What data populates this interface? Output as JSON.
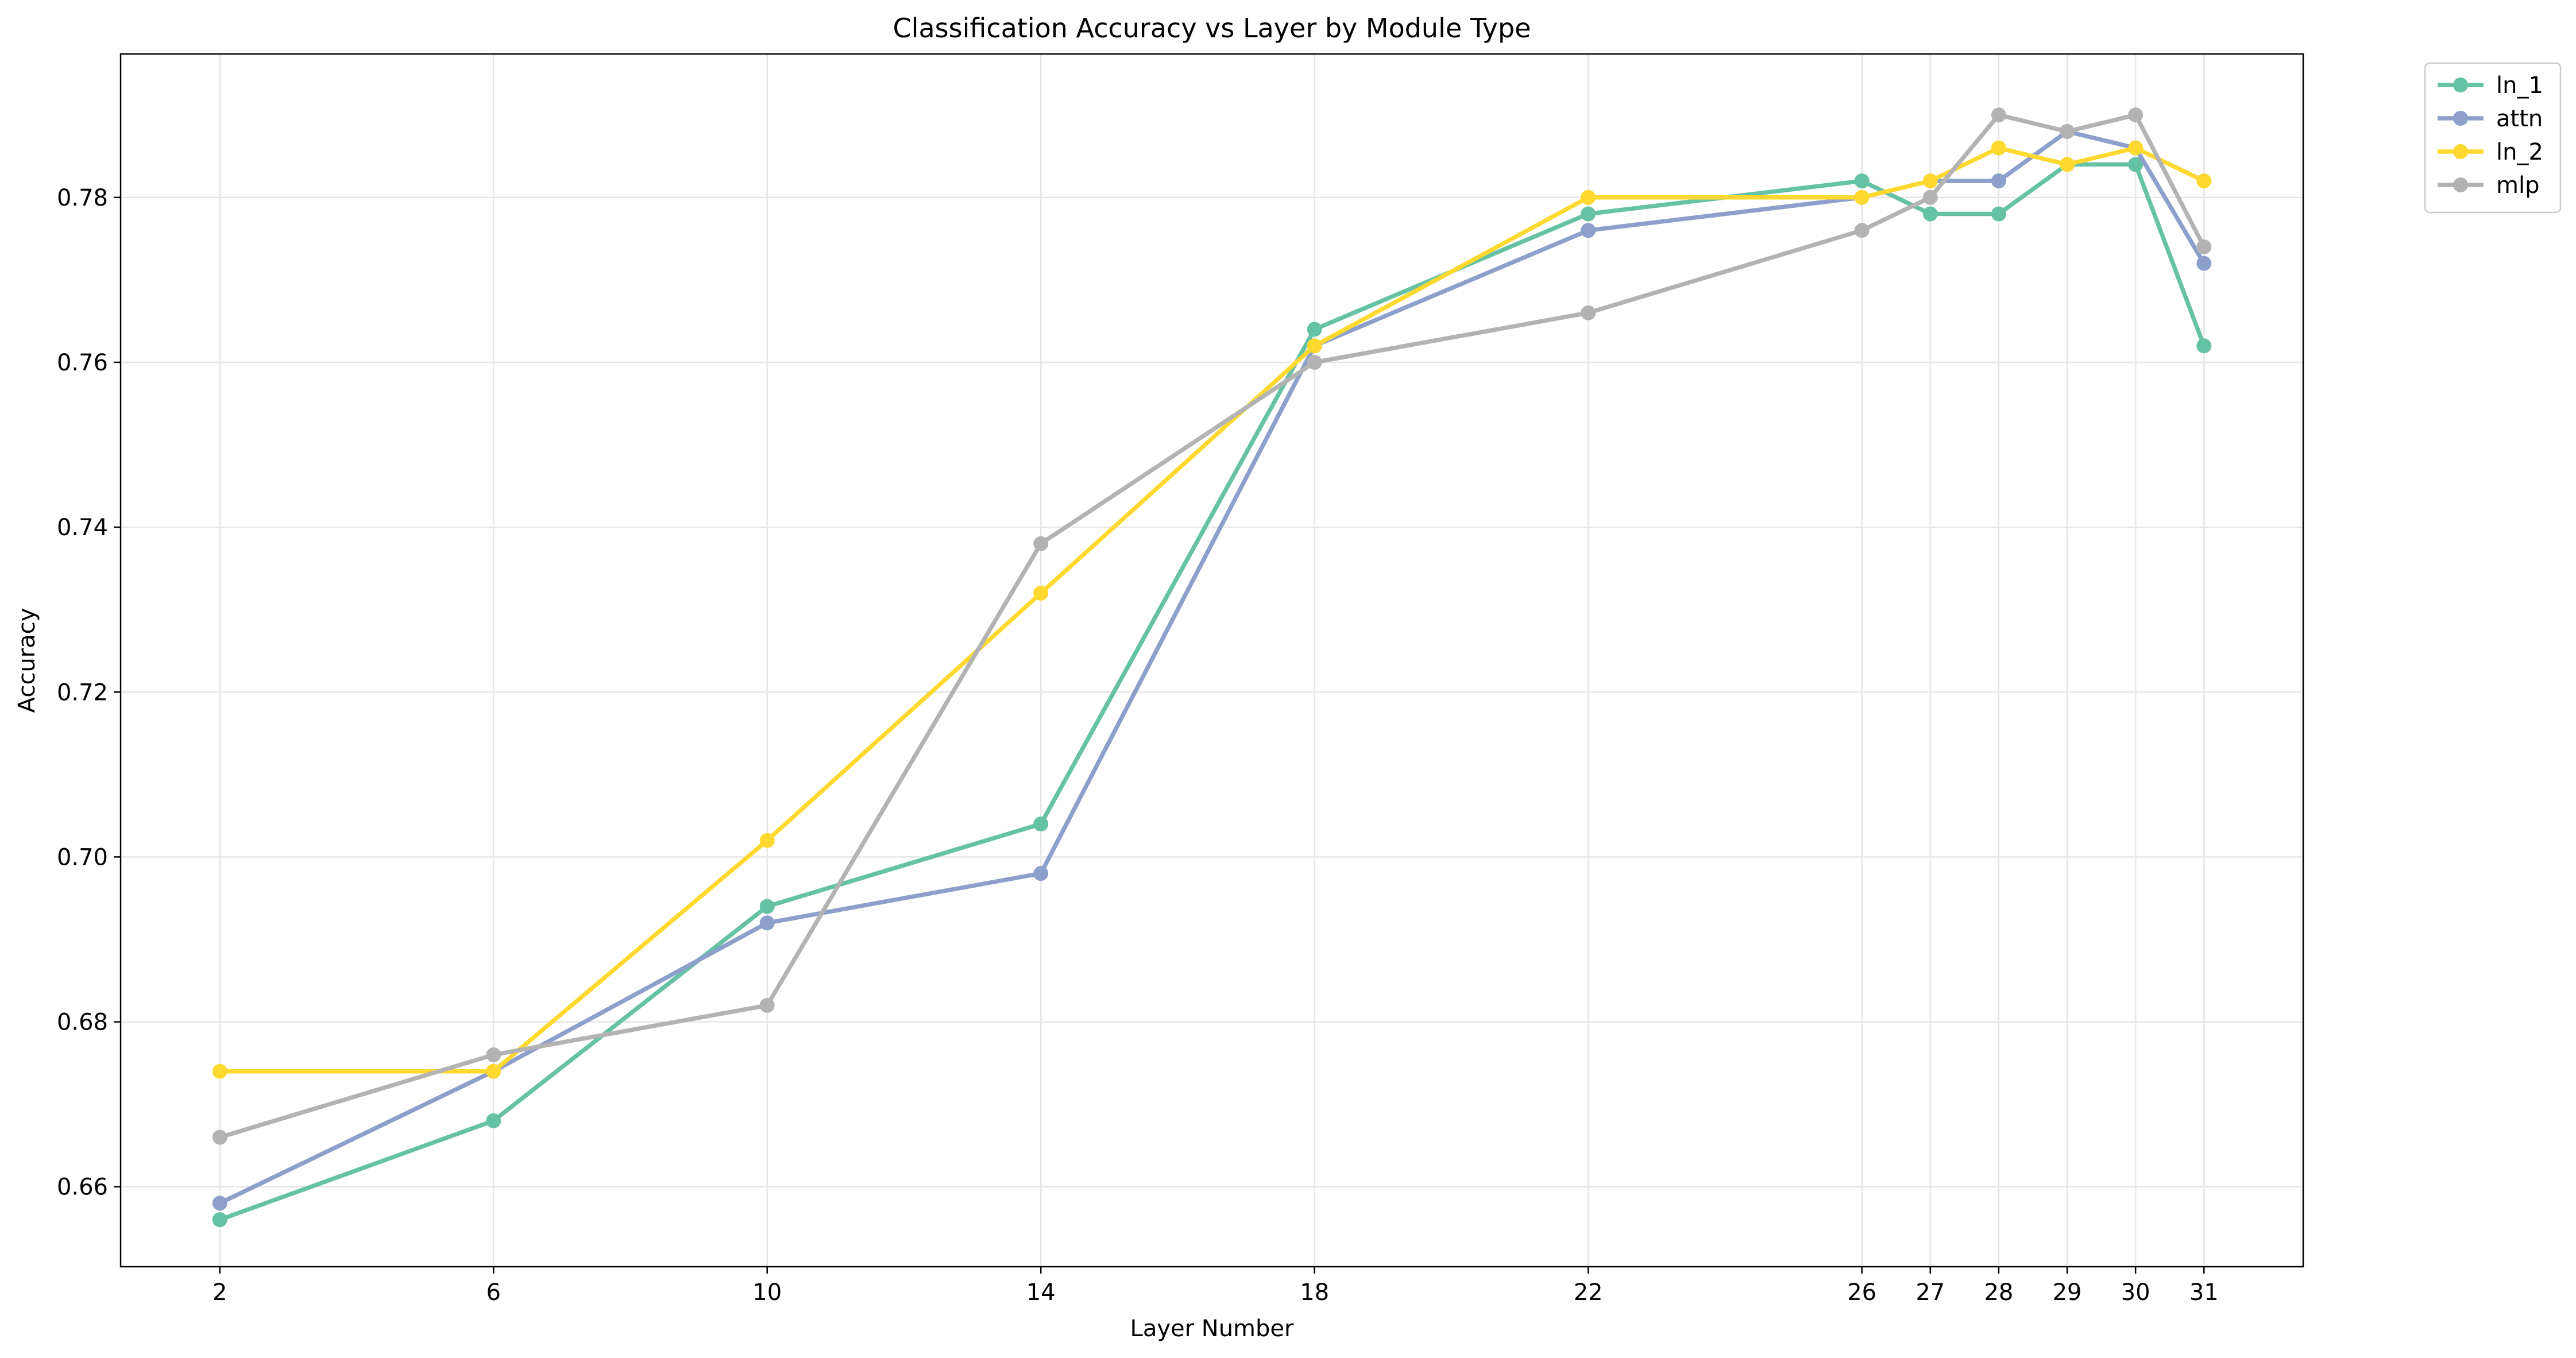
{
  "chart_data": {
    "type": "line",
    "title": "Classification Accuracy vs Layer by Module Type",
    "xlabel": "Layer Number",
    "ylabel": "Accuracy",
    "x": [
      2,
      6,
      10,
      14,
      18,
      22,
      26,
      27,
      28,
      29,
      30,
      31
    ],
    "x_ticks": [
      "2",
      "6",
      "10",
      "14",
      "18",
      "22",
      "26",
      "27",
      "28",
      "29",
      "30",
      "31"
    ],
    "xlim": [
      0.55,
      32.45
    ],
    "ylim": [
      0.6503,
      0.7974
    ],
    "y_ticks": [
      0.66,
      0.68,
      0.7,
      0.72,
      0.74,
      0.76,
      0.78
    ],
    "y_tick_labels": [
      "0.66",
      "0.68",
      "0.70",
      "0.72",
      "0.74",
      "0.76",
      "0.78"
    ],
    "grid": true,
    "legend_position": "outside-top-right",
    "series": [
      {
        "name": "ln_1",
        "color": "#66c2a5",
        "values": [
          0.656,
          0.668,
          0.694,
          0.704,
          0.764,
          0.778,
          0.782,
          0.778,
          0.778,
          0.784,
          0.784,
          0.762
        ]
      },
      {
        "name": "attn",
        "color": "#8da0cb",
        "values": [
          0.658,
          0.674,
          0.692,
          0.698,
          0.762,
          0.776,
          0.78,
          0.782,
          0.782,
          0.788,
          0.786,
          0.772
        ]
      },
      {
        "name": "ln_2",
        "color": "#ffd92f",
        "values": [
          0.674,
          0.674,
          0.702,
          0.732,
          0.762,
          0.78,
          0.78,
          0.782,
          0.786,
          0.784,
          0.786,
          0.782
        ]
      },
      {
        "name": "mlp",
        "color": "#b3b3b3",
        "values": [
          0.666,
          0.676,
          0.682,
          0.738,
          0.76,
          0.766,
          0.776,
          0.78,
          0.79,
          0.788,
          0.79,
          0.774
        ]
      }
    ]
  }
}
